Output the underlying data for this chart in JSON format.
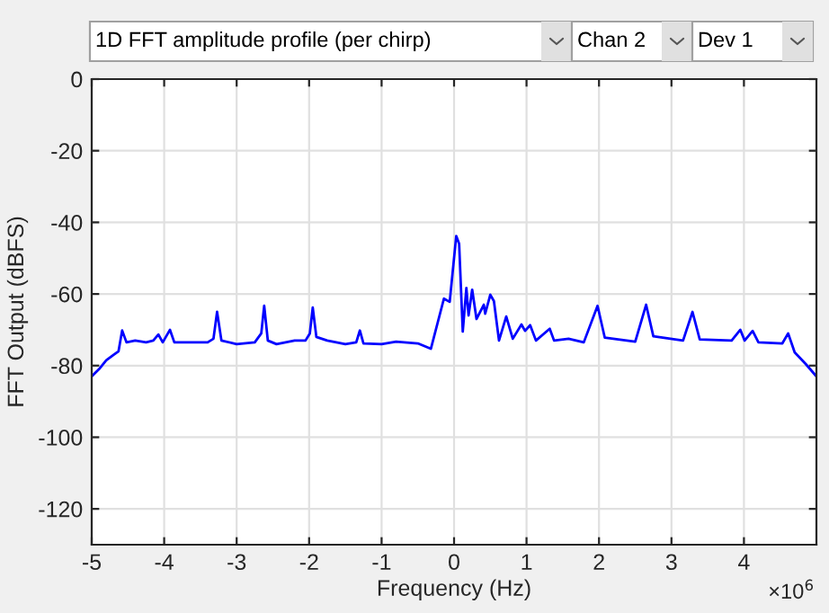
{
  "chart_data": {
    "type": "line",
    "xlabel": "Frequency (Hz)",
    "ylabel": "FFT Output (dBFS)",
    "annotations": [
      "1D FFT amplitude profile (per chirp)",
      "Chan 2",
      "Dev 1",
      "×10$^{6}$"
    ],
    "xlim": [
      -5,
      5
    ],
    "xticks": [
      -5,
      -4,
      -3,
      -2,
      -1,
      0,
      1,
      2,
      3,
      4
    ],
    "ylim": [
      -130,
      0
    ],
    "yticks": [
      -120,
      -100,
      -80,
      -60,
      -40,
      -20,
      0
    ],
    "grid": true,
    "marker": "none",
    "line_style": "solid",
    "series": [
      {
        "color": "#0000ff",
        "x": [
          -5,
          -4.9,
          -4.8,
          -4.7,
          -4.63,
          -4.58,
          -4.52,
          -4.4,
          -4.25,
          -4.15,
          -4.08,
          -4.02,
          -3.92,
          -3.86,
          -3.6,
          -3.4,
          -3.32,
          -3.27,
          -3.21,
          -3.0,
          -2.75,
          -2.66,
          -2.62,
          -2.57,
          -2.45,
          -2.2,
          -2.05,
          -1.99,
          -1.95,
          -1.9,
          -1.75,
          -1.5,
          -1.35,
          -1.3,
          -1.25,
          -1.0,
          -0.8,
          -0.5,
          -0.32,
          -0.14,
          -0.06,
          0.03,
          0.07,
          0.12,
          0.17,
          0.2,
          0.25,
          0.31,
          0.41,
          0.43,
          0.5,
          0.55,
          0.62,
          0.72,
          0.81,
          0.93,
          0.98,
          1.05,
          1.13,
          1.32,
          1.38,
          1.58,
          1.79,
          1.98,
          2.08,
          2.5,
          2.65,
          2.75,
          3.16,
          3.29,
          3.39,
          3.83,
          3.95,
          4.01,
          4.12,
          4.2,
          4.53,
          4.61,
          4.7,
          4.85,
          5
        ],
        "values": [
          -83,
          -81,
          -78.5,
          -77,
          -76,
          -70.2,
          -73.5,
          -73,
          -73.5,
          -73,
          -71.3,
          -73.5,
          -70,
          -73.5,
          -73.5,
          -73.5,
          -72.5,
          -65,
          -73,
          -74,
          -73.5,
          -71,
          -63.3,
          -73,
          -74,
          -73,
          -73,
          -71,
          -63.8,
          -72,
          -73,
          -74,
          -73.5,
          -70.2,
          -73.8,
          -74,
          -73.3,
          -73.8,
          -75.3,
          -61.3,
          -62.2,
          -43.8,
          -46,
          -70.5,
          -58.3,
          -66,
          -58.8,
          -67,
          -63,
          -65.5,
          -60.2,
          -62,
          -73,
          -66.3,
          -72.5,
          -68.5,
          -70.3,
          -68.7,
          -73,
          -69.7,
          -73,
          -72.5,
          -73.5,
          -63.3,
          -72.2,
          -73.3,
          -63,
          -71.8,
          -73,
          -65,
          -72.7,
          -73,
          -70,
          -73,
          -70.3,
          -73.5,
          -73.8,
          -71,
          -76.3,
          -79.5,
          -83
        ]
      }
    ]
  }
}
